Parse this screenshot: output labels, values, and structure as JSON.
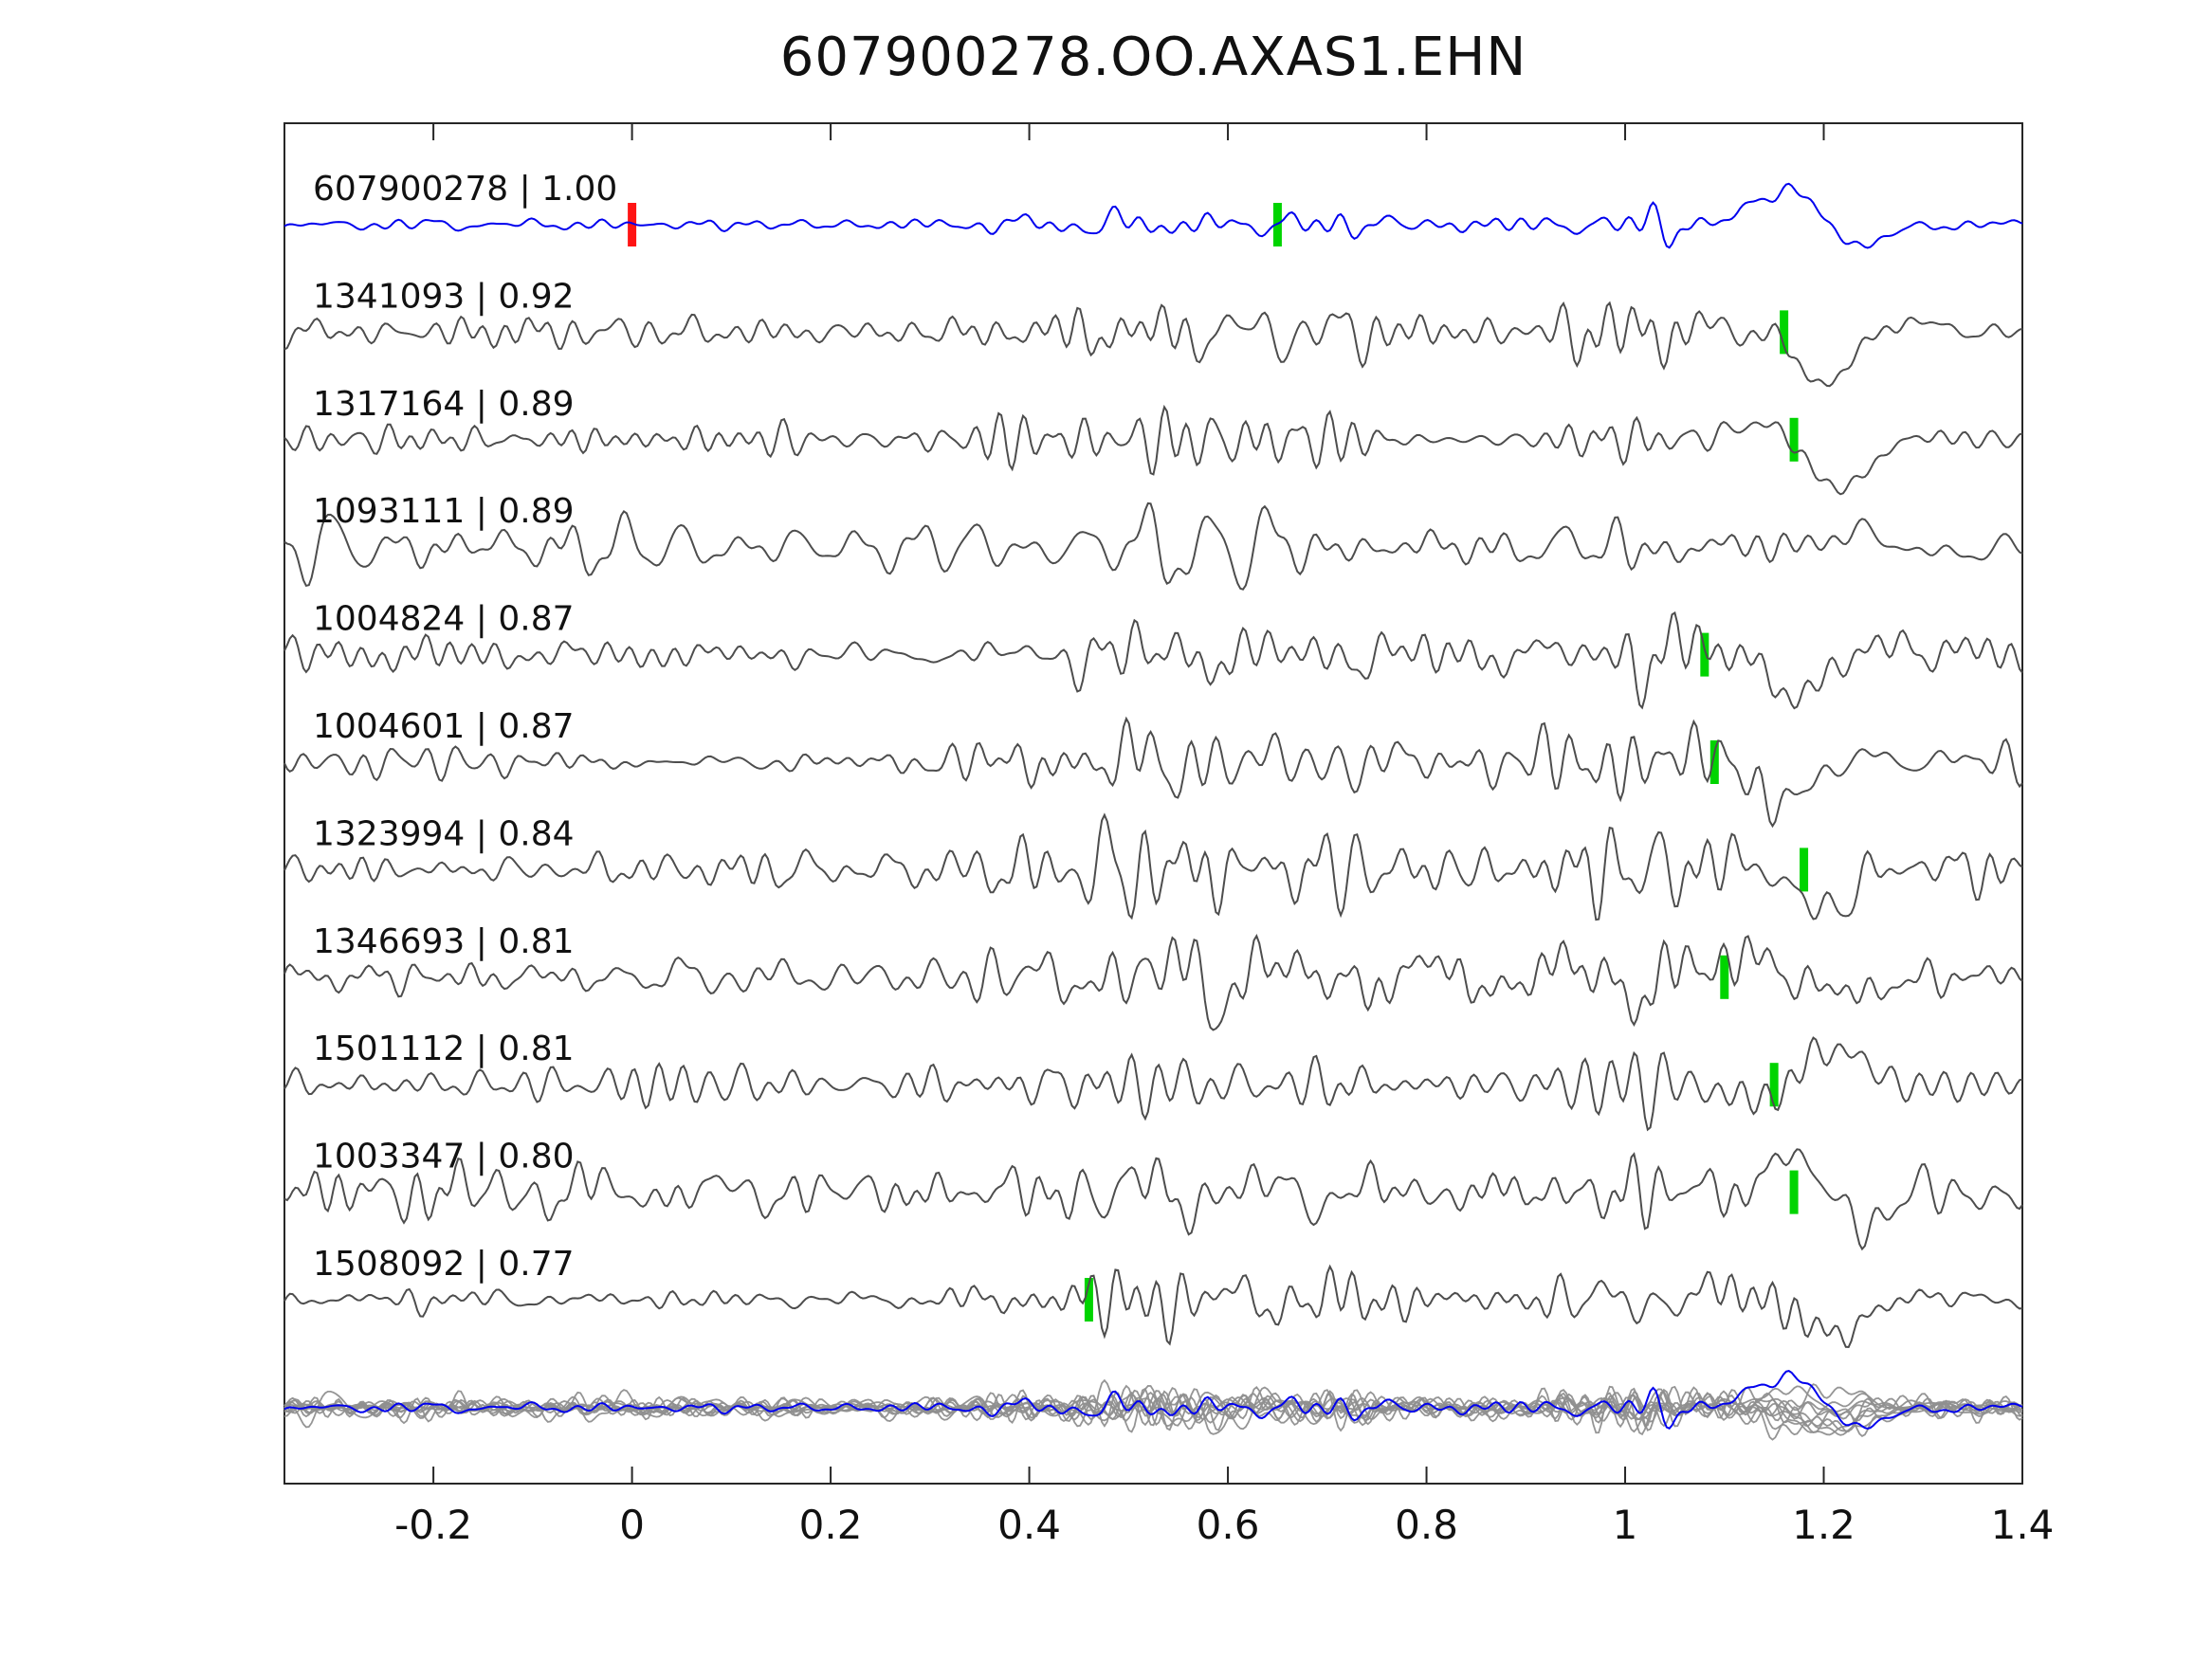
{
  "title": "607900278.OO.AXAS1.EHN",
  "colors": {
    "reference_trace": "#0000ee",
    "match_trace": "#4d4d4d",
    "pick_marker": "#00d400",
    "origin_marker": "#ff1414",
    "overlay_trace": "#8f8f8f",
    "plot_border": "#262626"
  },
  "chart_data": {
    "type": "line",
    "title": "607900278.OO.AXAS1.EHN",
    "xlabel": "",
    "ylabel": "",
    "xlim": [
      -0.35,
      1.4
    ],
    "grid": false,
    "legend_position": "none",
    "x_ticks": [
      -0.2,
      0,
      0.2,
      0.4,
      0.6,
      0.8,
      1,
      1.2,
      1.4
    ],
    "x_tick_labels": [
      "-0.2",
      "0",
      "0.2",
      "0.4",
      "0.6",
      "0.8",
      "1",
      "1.2",
      "1.4"
    ],
    "traces": [
      {
        "id": "607900278",
        "correlation": "1.00",
        "label": "607900278 | 1.00",
        "role": "reference",
        "pick_time": 0.65,
        "origin_time": 0.0
      },
      {
        "id": "1341093",
        "correlation": "0.92",
        "label": "1341093 | 0.92",
        "role": "match",
        "pick_time": 1.16,
        "origin_time": null
      },
      {
        "id": "1317164",
        "correlation": "0.89",
        "label": "1317164 | 0.89",
        "role": "match",
        "pick_time": 1.17,
        "origin_time": null
      },
      {
        "id": "1093111",
        "correlation": "0.89",
        "label": "1093111 | 0.89",
        "role": "match",
        "pick_time": null,
        "origin_time": null
      },
      {
        "id": "1004824",
        "correlation": "0.87",
        "label": "1004824 | 0.87",
        "role": "match",
        "pick_time": 1.08,
        "origin_time": null
      },
      {
        "id": "1004601",
        "correlation": "0.87",
        "label": "1004601 | 0.87",
        "role": "match",
        "pick_time": 1.09,
        "origin_time": null
      },
      {
        "id": "1323994",
        "correlation": "0.84",
        "label": "1323994 | 0.84",
        "role": "match",
        "pick_time": 1.18,
        "origin_time": null
      },
      {
        "id": "1346693",
        "correlation": "0.81",
        "label": "1346693 | 0.81",
        "role": "match",
        "pick_time": 1.1,
        "origin_time": null
      },
      {
        "id": "1501112",
        "correlation": "0.81",
        "label": "1501112 | 0.81",
        "role": "match",
        "pick_time": 1.15,
        "origin_time": null
      },
      {
        "id": "1003347",
        "correlation": "0.80",
        "label": "1003347 | 0.80",
        "role": "match",
        "pick_time": 1.17,
        "origin_time": null
      },
      {
        "id": "1508092",
        "correlation": "0.77",
        "label": "1508092 | 0.77",
        "role": "match",
        "pick_time": 0.46,
        "origin_time": null
      }
    ],
    "overlay_row": {
      "description": "all matched traces superimposed with reference trace on top"
    }
  }
}
